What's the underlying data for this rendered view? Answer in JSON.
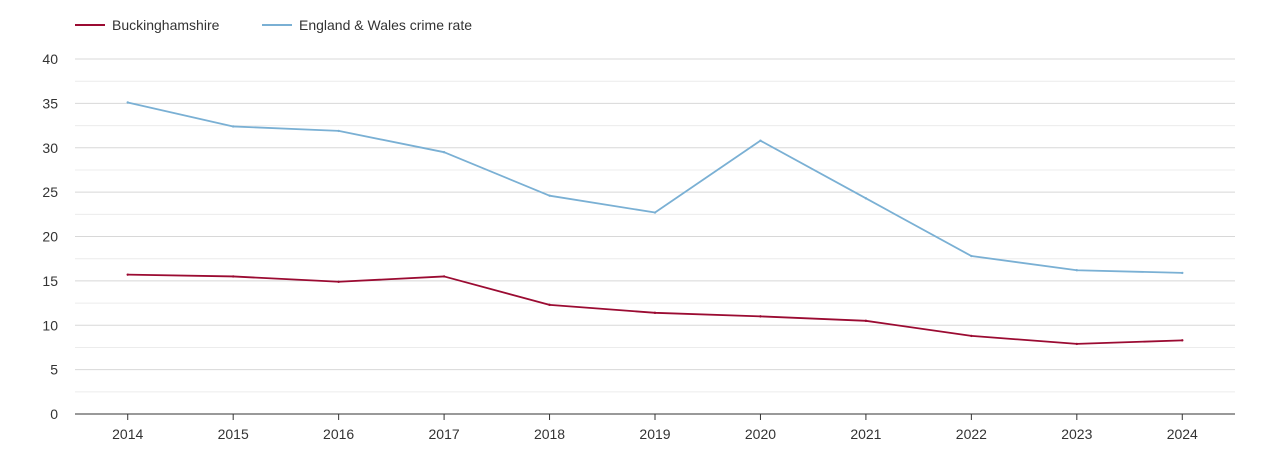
{
  "chart_data": {
    "type": "line",
    "categories": [
      "2014",
      "2015",
      "2016",
      "2017",
      "2018",
      "2019",
      "2020",
      "2021",
      "2022",
      "2023",
      "2024"
    ],
    "series": [
      {
        "name": "Buckinghamshire",
        "color": "#9b0b32",
        "values": [
          15.7,
          15.5,
          14.9,
          15.5,
          12.3,
          11.4,
          11.0,
          10.5,
          8.8,
          7.9,
          8.3
        ]
      },
      {
        "name": "England & Wales crime rate",
        "color": "#7ab0d4",
        "values": [
          35.1,
          32.4,
          31.9,
          29.5,
          24.6,
          22.7,
          30.8,
          24.3,
          17.8,
          16.2,
          15.9
        ]
      }
    ],
    "yticks": [
      "0",
      "5",
      "10",
      "15",
      "20",
      "25",
      "30",
      "35",
      "40"
    ],
    "ylim": [
      0,
      40
    ],
    "grid": true,
    "minor_grid": true,
    "legend": "top-left"
  }
}
